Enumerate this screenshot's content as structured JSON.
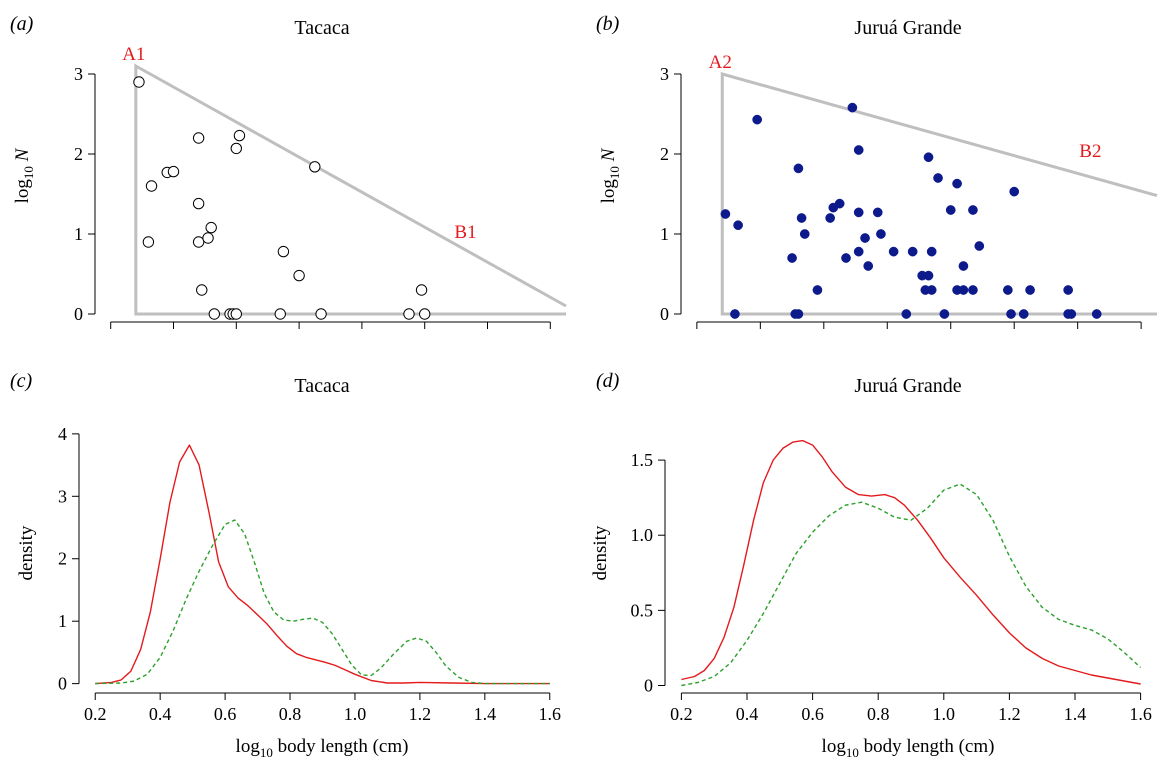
{
  "figure": {
    "background": "#ffffff",
    "colors": {
      "triangle": "#bfbfbf",
      "annotation": "#e41a1c",
      "filled_points": "#0d1a8c",
      "solid_line": "#e41a1c",
      "dashed_line": "#2ca02c"
    }
  },
  "chart_data": [
    {
      "panel": "(a)",
      "type": "scatter",
      "title": "Tacaca",
      "ylabel": "log10 N",
      "xlim": [
        0.15,
        1.65
      ],
      "ylim": [
        -0.1,
        3.55
      ],
      "yticks": [
        0,
        1,
        2,
        3
      ],
      "xticks": [
        0.2,
        0.4,
        0.6,
        0.8,
        1.0,
        1.2,
        1.4,
        1.6
      ],
      "xtick_labels_shown": false,
      "marker": "open-circle",
      "points": [
        {
          "x": 0.29,
          "y": 2.9
        },
        {
          "x": 0.32,
          "y": 0.9
        },
        {
          "x": 0.33,
          "y": 1.6
        },
        {
          "x": 0.38,
          "y": 1.77
        },
        {
          "x": 0.4,
          "y": 1.78
        },
        {
          "x": 0.48,
          "y": 2.2
        },
        {
          "x": 0.48,
          "y": 1.38
        },
        {
          "x": 0.48,
          "y": 0.9
        },
        {
          "x": 0.49,
          "y": 0.3
        },
        {
          "x": 0.51,
          "y": 0.95
        },
        {
          "x": 0.52,
          "y": 1.08
        },
        {
          "x": 0.53,
          "y": 0.0
        },
        {
          "x": 0.58,
          "y": 0.0
        },
        {
          "x": 0.59,
          "y": 0.0
        },
        {
          "x": 0.6,
          "y": 0.0
        },
        {
          "x": 0.6,
          "y": 2.07
        },
        {
          "x": 0.61,
          "y": 2.23
        },
        {
          "x": 0.74,
          "y": 0.0
        },
        {
          "x": 0.75,
          "y": 0.78
        },
        {
          "x": 0.8,
          "y": 0.48
        },
        {
          "x": 0.85,
          "y": 1.84
        },
        {
          "x": 0.87,
          "y": 0.0
        },
        {
          "x": 1.15,
          "y": 0.0
        },
        {
          "x": 1.19,
          "y": 0.3
        },
        {
          "x": 1.2,
          "y": 0.0
        }
      ],
      "triangle": {
        "x0": 0.28,
        "top_y": 3.1,
        "x_end": 1.65,
        "end_y": 0.1
      },
      "annotations": [
        {
          "label": "A1",
          "anchor": "apex"
        },
        {
          "label": "B1",
          "anchor": "hypotenuse"
        }
      ]
    },
    {
      "panel": "(b)",
      "type": "scatter",
      "title": "Juruá Grande",
      "ylabel": "log10 N",
      "xlim": [
        0.15,
        1.65
      ],
      "ylim": [
        -0.1,
        3.55
      ],
      "yticks": [
        0,
        1,
        2,
        3
      ],
      "xticks": [
        0.2,
        0.4,
        0.6,
        0.8,
        1.0,
        1.2,
        1.4,
        1.6
      ],
      "xtick_labels_shown": false,
      "marker": "filled-circle",
      "points": [
        {
          "x": 0.29,
          "y": 1.25
        },
        {
          "x": 0.32,
          "y": 0.0
        },
        {
          "x": 0.33,
          "y": 1.11
        },
        {
          "x": 0.39,
          "y": 2.43
        },
        {
          "x": 0.5,
          "y": 0.7
        },
        {
          "x": 0.51,
          "y": 0.0
        },
        {
          "x": 0.52,
          "y": 1.82
        },
        {
          "x": 0.52,
          "y": 0.0
        },
        {
          "x": 0.53,
          "y": 1.2
        },
        {
          "x": 0.54,
          "y": 1.0
        },
        {
          "x": 0.58,
          "y": 0.3
        },
        {
          "x": 0.62,
          "y": 1.2
        },
        {
          "x": 0.63,
          "y": 1.33
        },
        {
          "x": 0.65,
          "y": 1.38
        },
        {
          "x": 0.67,
          "y": 0.7
        },
        {
          "x": 0.69,
          "y": 2.58
        },
        {
          "x": 0.71,
          "y": 2.05
        },
        {
          "x": 0.71,
          "y": 1.27
        },
        {
          "x": 0.71,
          "y": 0.78
        },
        {
          "x": 0.73,
          "y": 0.95
        },
        {
          "x": 0.74,
          "y": 0.6
        },
        {
          "x": 0.77,
          "y": 1.27
        },
        {
          "x": 0.78,
          "y": 1.0
        },
        {
          "x": 0.82,
          "y": 0.78
        },
        {
          "x": 0.86,
          "y": 0.0
        },
        {
          "x": 0.88,
          "y": 0.78
        },
        {
          "x": 0.91,
          "y": 0.48
        },
        {
          "x": 0.92,
          "y": 0.3
        },
        {
          "x": 0.93,
          "y": 1.96
        },
        {
          "x": 0.93,
          "y": 0.48
        },
        {
          "x": 0.94,
          "y": 0.3
        },
        {
          "x": 0.94,
          "y": 0.78
        },
        {
          "x": 0.96,
          "y": 1.7
        },
        {
          "x": 0.98,
          "y": 0.0
        },
        {
          "x": 1.0,
          "y": 1.3
        },
        {
          "x": 1.02,
          "y": 1.63
        },
        {
          "x": 1.02,
          "y": 0.3
        },
        {
          "x": 1.04,
          "y": 0.6
        },
        {
          "x": 1.04,
          "y": 0.3
        },
        {
          "x": 1.07,
          "y": 1.3
        },
        {
          "x": 1.07,
          "y": 0.3
        },
        {
          "x": 1.09,
          "y": 0.85
        },
        {
          "x": 1.18,
          "y": 0.3
        },
        {
          "x": 1.19,
          "y": 0.0
        },
        {
          "x": 1.2,
          "y": 1.53
        },
        {
          "x": 1.23,
          "y": 0.0
        },
        {
          "x": 1.25,
          "y": 0.3
        },
        {
          "x": 1.37,
          "y": 0.3
        },
        {
          "x": 1.37,
          "y": 0.0
        },
        {
          "x": 1.38,
          "y": 0.0
        },
        {
          "x": 1.46,
          "y": 0.0
        }
      ],
      "triangle": {
        "x0": 0.28,
        "top_y": 3.0,
        "x_end": 1.65,
        "end_y": 1.48
      },
      "annotations": [
        {
          "label": "A2",
          "anchor": "apex"
        },
        {
          "label": "B2",
          "anchor": "hypotenuse"
        }
      ]
    },
    {
      "panel": "(c)",
      "type": "line",
      "title": "Tacaca",
      "xlabel": "log10 body length (cm)",
      "ylabel": "density",
      "xlim": [
        0.15,
        1.65
      ],
      "ylim": [
        -0.15,
        4.35
      ],
      "yticks": [
        0,
        1,
        2,
        3,
        4
      ],
      "xticks": [
        0.2,
        0.4,
        0.6,
        0.8,
        1.0,
        1.2,
        1.4,
        1.6
      ],
      "xtick_labels": [
        "0.2",
        "0.4",
        "0.6",
        "0.8",
        "1.0",
        "1.2",
        "1.4",
        "1.6"
      ],
      "series": [
        {
          "style": "solid",
          "color": "#e41a1c",
          "x": [
            0.2,
            0.25,
            0.28,
            0.31,
            0.34,
            0.37,
            0.4,
            0.43,
            0.46,
            0.49,
            0.52,
            0.55,
            0.58,
            0.61,
            0.64,
            0.67,
            0.7,
            0.73,
            0.76,
            0.79,
            0.82,
            0.85,
            0.88,
            0.91,
            0.94,
            0.97,
            1.0,
            1.05,
            1.1,
            1.15,
            1.2,
            1.3,
            1.4,
            1.5,
            1.6
          ],
          "y": [
            0.0,
            0.02,
            0.06,
            0.2,
            0.55,
            1.15,
            2.0,
            2.9,
            3.55,
            3.82,
            3.5,
            2.75,
            1.95,
            1.55,
            1.37,
            1.25,
            1.1,
            0.95,
            0.77,
            0.6,
            0.48,
            0.42,
            0.38,
            0.34,
            0.29,
            0.22,
            0.15,
            0.05,
            0.01,
            0.01,
            0.02,
            0.01,
            0.0,
            0.0,
            0.0
          ]
        },
        {
          "style": "dashed",
          "color": "#2ca02c",
          "x": [
            0.2,
            0.28,
            0.32,
            0.36,
            0.4,
            0.44,
            0.48,
            0.52,
            0.56,
            0.6,
            0.63,
            0.66,
            0.69,
            0.72,
            0.75,
            0.78,
            0.81,
            0.84,
            0.87,
            0.9,
            0.93,
            0.96,
            0.99,
            1.02,
            1.05,
            1.08,
            1.12,
            1.16,
            1.19,
            1.22,
            1.25,
            1.28,
            1.32,
            1.36,
            1.4,
            1.5,
            1.6
          ],
          "y": [
            0.0,
            0.01,
            0.04,
            0.15,
            0.42,
            0.85,
            1.35,
            1.8,
            2.2,
            2.55,
            2.62,
            2.4,
            1.95,
            1.45,
            1.15,
            1.02,
            1.0,
            1.03,
            1.05,
            0.98,
            0.8,
            0.55,
            0.3,
            0.14,
            0.13,
            0.25,
            0.48,
            0.68,
            0.73,
            0.68,
            0.5,
            0.28,
            0.1,
            0.02,
            0.0,
            0.0,
            0.0
          ]
        }
      ]
    },
    {
      "panel": "(d)",
      "type": "line",
      "title": "Juruá Grande",
      "xlabel": "log10 body length (cm)",
      "ylabel": "density",
      "xlim": [
        0.15,
        1.65
      ],
      "ylim": [
        -0.05,
        1.82
      ],
      "yticks": [
        0.0,
        0.5,
        1.0,
        1.5
      ],
      "ytick_labels": [
        "0",
        "0.5",
        "1.0",
        "1.5"
      ],
      "xticks": [
        0.2,
        0.4,
        0.6,
        0.8,
        1.0,
        1.2,
        1.4,
        1.6
      ],
      "xtick_labels": [
        "0.2",
        "0.4",
        "0.6",
        "0.8",
        "1.0",
        "1.2",
        "1.4",
        "1.6"
      ],
      "series": [
        {
          "style": "solid",
          "color": "#e41a1c",
          "x": [
            0.2,
            0.24,
            0.27,
            0.3,
            0.33,
            0.36,
            0.39,
            0.42,
            0.45,
            0.48,
            0.51,
            0.54,
            0.57,
            0.6,
            0.63,
            0.66,
            0.7,
            0.74,
            0.78,
            0.82,
            0.85,
            0.88,
            0.92,
            0.96,
            1.0,
            1.05,
            1.1,
            1.15,
            1.2,
            1.25,
            1.3,
            1.35,
            1.4,
            1.45,
            1.5,
            1.55,
            1.6
          ],
          "y": [
            0.04,
            0.06,
            0.1,
            0.18,
            0.32,
            0.52,
            0.8,
            1.1,
            1.35,
            1.5,
            1.58,
            1.62,
            1.63,
            1.6,
            1.52,
            1.42,
            1.32,
            1.27,
            1.26,
            1.27,
            1.25,
            1.2,
            1.1,
            0.98,
            0.85,
            0.72,
            0.6,
            0.47,
            0.35,
            0.25,
            0.18,
            0.13,
            0.1,
            0.07,
            0.05,
            0.03,
            0.01
          ]
        },
        {
          "style": "dashed",
          "color": "#2ca02c",
          "x": [
            0.2,
            0.25,
            0.3,
            0.35,
            0.4,
            0.45,
            0.5,
            0.55,
            0.6,
            0.65,
            0.7,
            0.75,
            0.8,
            0.85,
            0.9,
            0.95,
            1.0,
            1.05,
            1.1,
            1.15,
            1.2,
            1.25,
            1.3,
            1.35,
            1.4,
            1.45,
            1.5,
            1.55,
            1.6
          ],
          "y": [
            0.0,
            0.02,
            0.06,
            0.15,
            0.3,
            0.48,
            0.68,
            0.88,
            1.02,
            1.13,
            1.2,
            1.22,
            1.18,
            1.12,
            1.1,
            1.18,
            1.3,
            1.34,
            1.27,
            1.1,
            0.86,
            0.66,
            0.52,
            0.44,
            0.4,
            0.37,
            0.31,
            0.22,
            0.12
          ]
        }
      ]
    }
  ]
}
